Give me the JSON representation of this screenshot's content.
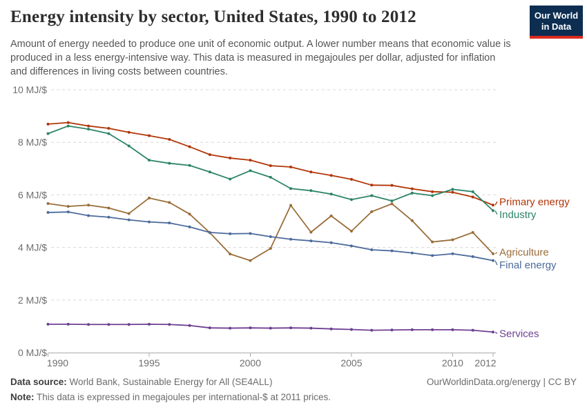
{
  "header": {
    "title": "Energy intensity by sector, United States, 1990 to 2012",
    "subtitle": "Amount of energy needed to produce one unit of economic output. A lower number means that economic value is produced in a less energy-intensive way. This data is measured in megajoules per dollar, adjusted for inflation and differences in living costs between countries.",
    "logo": {
      "line1": "Our World",
      "line2": "in Data"
    }
  },
  "chart_data": {
    "type": "line",
    "title": "Energy intensity by sector, United States, 1990 to 2012",
    "unit": "MJ/$",
    "xlabel": "",
    "ylabel": "megajoules per dollar",
    "ylim": [
      0,
      10
    ],
    "grid": "horizontal dashed",
    "legend_position": "right of line ends",
    "x": [
      1990,
      1991,
      1992,
      1993,
      1994,
      1995,
      1996,
      1997,
      1998,
      1999,
      2000,
      2001,
      2002,
      2003,
      2004,
      2005,
      2006,
      2007,
      2008,
      2009,
      2010,
      2011,
      2012
    ],
    "series": [
      {
        "name": "Primary energy",
        "color": "#b13507",
        "values": [
          8.69,
          8.75,
          8.62,
          8.53,
          8.38,
          8.25,
          8.11,
          7.83,
          7.53,
          7.4,
          7.32,
          7.11,
          7.06,
          6.87,
          6.74,
          6.59,
          6.37,
          6.36,
          6.23,
          6.12,
          6.1,
          5.92,
          5.61
        ]
      },
      {
        "name": "Industry",
        "color": "#2c8465",
        "values": [
          8.33,
          8.62,
          8.5,
          8.33,
          7.86,
          7.32,
          7.2,
          7.12,
          6.87,
          6.6,
          6.92,
          6.67,
          6.24,
          6.16,
          6.03,
          5.82,
          5.97,
          5.77,
          6.07,
          5.97,
          6.21,
          6.12,
          5.4
        ]
      },
      {
        "name": "Agriculture",
        "color": "#996d39",
        "values": [
          5.67,
          5.56,
          5.61,
          5.5,
          5.29,
          5.88,
          5.71,
          5.27,
          4.56,
          3.75,
          3.5,
          3.96,
          5.6,
          4.58,
          5.2,
          4.62,
          5.36,
          5.66,
          5.02,
          4.21,
          4.29,
          4.57,
          3.76
        ]
      },
      {
        "name": "Final energy",
        "color": "#4c6a9c",
        "values": [
          5.33,
          5.35,
          5.21,
          5.15,
          5.05,
          4.97,
          4.93,
          4.78,
          4.57,
          4.52,
          4.53,
          4.41,
          4.31,
          4.25,
          4.18,
          4.06,
          3.91,
          3.87,
          3.79,
          3.69,
          3.76,
          3.65,
          3.5
        ]
      },
      {
        "name": "Services",
        "color": "#6d3e91",
        "values": [
          1.08,
          1.08,
          1.07,
          1.07,
          1.07,
          1.08,
          1.07,
          1.03,
          0.94,
          0.93,
          0.94,
          0.93,
          0.94,
          0.93,
          0.9,
          0.88,
          0.85,
          0.86,
          0.87,
          0.87,
          0.87,
          0.85,
          0.78
        ]
      }
    ],
    "y_ticks": [
      {
        "value": 0,
        "label": "0 MJ/$"
      },
      {
        "value": 2,
        "label": "2 MJ/$"
      },
      {
        "value": 4,
        "label": "4 MJ/$"
      },
      {
        "value": 6,
        "label": "6 MJ/$"
      },
      {
        "value": 8,
        "label": "8 MJ/$"
      },
      {
        "value": 10,
        "label": "10 MJ/$"
      }
    ],
    "x_ticks": [
      1990,
      1995,
      2000,
      2005,
      2010,
      2012
    ]
  },
  "footer": {
    "datasource_label": "Data source:",
    "datasource_text": " World Bank, Sustainable Energy for All (SE4ALL)",
    "link": "OurWorldinData.org/energy | CC BY",
    "note_label": "Note:",
    "note_text": " This data is expressed in megajoules per international-$ at 2011 prices."
  }
}
